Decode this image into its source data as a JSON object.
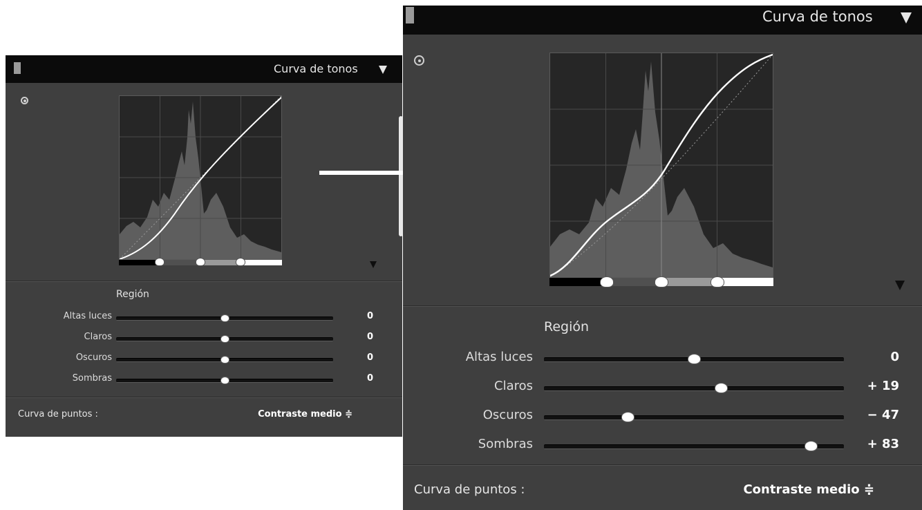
{
  "arrow_color": "#ffffff",
  "before_panel": {
    "title": "Curva de tonos",
    "region_title": "Región",
    "sliders": [
      {
        "label": "Altas luces",
        "value": "0",
        "fraction": 0.5
      },
      {
        "label": "Claros",
        "value": "0",
        "fraction": 0.5
      },
      {
        "label": "Oscuros",
        "value": "0",
        "fraction": 0.5
      },
      {
        "label": "Sombras",
        "value": "0",
        "fraction": 0.5
      }
    ],
    "point_curve_label": "Curva de puntos :",
    "point_curve_value": "Contraste medio ≑"
  },
  "after_panel": {
    "title": "Curva de tonos",
    "region_title": "Región",
    "sliders": [
      {
        "label": "Altas luces",
        "value": "0",
        "fraction": 0.5
      },
      {
        "label": "Claros",
        "value": "+ 19",
        "fraction": 0.59
      },
      {
        "label": "Oscuros",
        "value": "− 47",
        "fraction": 0.28
      },
      {
        "label": "Sombras",
        "value": "+ 83",
        "fraction": 0.89
      }
    ],
    "point_curve_label": "Curva de puntos :",
    "point_curve_value": "Contraste medio ≑"
  }
}
